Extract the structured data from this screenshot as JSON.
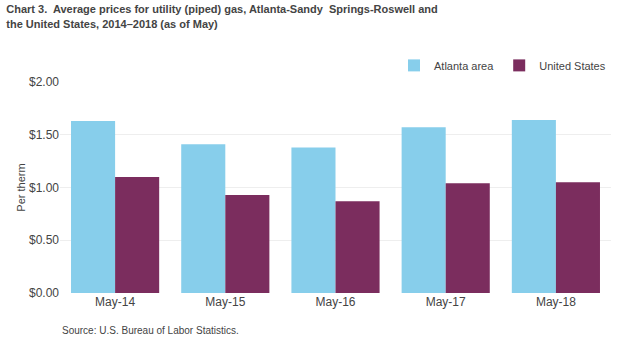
{
  "chart_data": {
    "type": "bar",
    "title": "Chart 3.  Average prices for utility (piped) gas, Atlanta-Sandy  Springs-Roswell and\nthe United States, 2014–2018 (as of May)",
    "ylabel": "Per therm",
    "annotations": [
      "Source: U.S. Bureau of Labor Statistics."
    ],
    "categories": [
      "May-14",
      "May-15",
      "May-16",
      "May-17",
      "May-18"
    ],
    "series": [
      {
        "name": "Atlanta area",
        "color": "#87CEEB",
        "values": [
          1.63,
          1.41,
          1.38,
          1.57,
          1.64
        ]
      },
      {
        "name": "United States",
        "color": "#7B2D5E",
        "values": [
          1.1,
          0.93,
          0.87,
          1.04,
          1.05
        ]
      }
    ],
    "ylim": [
      0.0,
      2.0
    ],
    "yticks": [
      {
        "value": 0.0,
        "label": "$0.00"
      },
      {
        "value": 0.5,
        "label": "$0.50"
      },
      {
        "value": 1.0,
        "label": "$1.00"
      },
      {
        "value": 1.5,
        "label": "$1.50"
      },
      {
        "value": 2.0,
        "label": "$2.00"
      }
    ],
    "grid": true,
    "legend": "upper right"
  }
}
